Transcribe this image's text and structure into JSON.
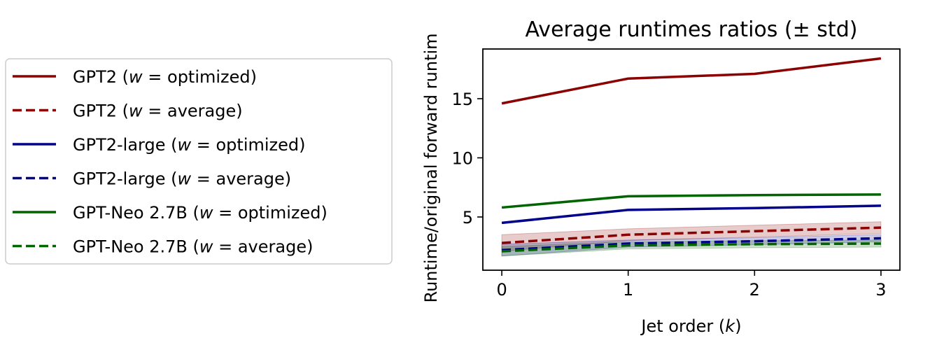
{
  "chart_data": {
    "type": "line",
    "title": "Average runtimes ratios (± std)",
    "xlabel": "Jet order (k)",
    "xlabel_prefix": "Jet order (",
    "xlabel_var": "k",
    "xlabel_suffix": ")",
    "ylabel": "Runtime/original forward runtim",
    "x": [
      0,
      1,
      2,
      3
    ],
    "xlim": [
      -0.15,
      3.15
    ],
    "ylim": [
      0.5,
      19.2
    ],
    "xticks": [
      0,
      1,
      2,
      3
    ],
    "yticks": [
      5,
      10,
      15
    ],
    "grid": false,
    "legend_position": "outside-left",
    "series": [
      {
        "name": "GPT2 (w = optimized)",
        "model": "GPT2",
        "w": "optimized",
        "color": "#8b0000",
        "style": "solid",
        "values": [
          14.6,
          16.7,
          17.1,
          18.4
        ],
        "std": [
          0.0,
          0.0,
          0.0,
          0.0
        ]
      },
      {
        "name": "GPT2 (w = average)",
        "model": "GPT2",
        "w": "average",
        "color": "#8b0000",
        "style": "dashed",
        "values": [
          2.8,
          3.5,
          3.8,
          4.1
        ],
        "std": [
          0.7,
          0.5,
          0.5,
          0.5
        ]
      },
      {
        "name": "GPT2-large (w = optimized)",
        "model": "GPT2-large",
        "w": "optimized",
        "color": "#00008b",
        "style": "solid",
        "values": [
          4.5,
          5.6,
          5.75,
          5.95
        ],
        "std": [
          0.0,
          0.0,
          0.0,
          0.0
        ]
      },
      {
        "name": "GPT2-large (w = average)",
        "model": "GPT2-large",
        "w": "average",
        "color": "#00008b",
        "style": "dashed",
        "values": [
          2.2,
          2.75,
          2.95,
          3.2
        ],
        "std": [
          0.5,
          0.3,
          0.3,
          0.3
        ]
      },
      {
        "name": "GPT-Neo 2.7B (w = optimized)",
        "model": "GPT-Neo 2.7B",
        "w": "optimized",
        "color": "#006400",
        "style": "solid",
        "values": [
          5.8,
          6.75,
          6.85,
          6.9
        ],
        "std": [
          0.0,
          0.0,
          0.0,
          0.0
        ]
      },
      {
        "name": "GPT-Neo 2.7B (w = average)",
        "model": "GPT-Neo 2.7B",
        "w": "average",
        "color": "#006400",
        "style": "dashed",
        "values": [
          2.1,
          2.6,
          2.7,
          2.75
        ],
        "std": [
          0.4,
          0.3,
          0.3,
          0.3
        ]
      }
    ]
  }
}
